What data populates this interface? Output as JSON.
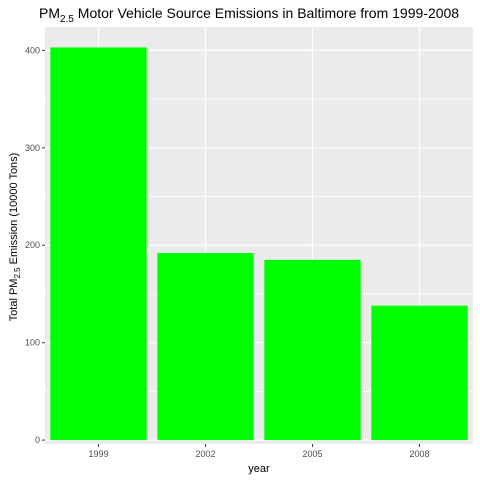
{
  "chart_data": {
    "type": "bar",
    "title": {
      "prefix": "PM",
      "subscript": "2.5",
      "suffix": " Motor Vehicle Source Emissions in Baltimore from 1999-2008"
    },
    "xlabel": "year",
    "ylabel": {
      "prefix": "Total PM",
      "subscript": "2.5",
      "suffix": " Emission (10000 Tons)"
    },
    "categories": [
      "1999",
      "2002",
      "2005",
      "2008"
    ],
    "values": [
      403,
      192,
      185,
      138
    ],
    "ylim": [
      -4,
      424
    ],
    "yticks": [
      0,
      100,
      200,
      300,
      400
    ],
    "bar_color": "#00ff00",
    "panel_background": "#ebebeb",
    "grid": true,
    "grid_color": "#ffffff"
  }
}
